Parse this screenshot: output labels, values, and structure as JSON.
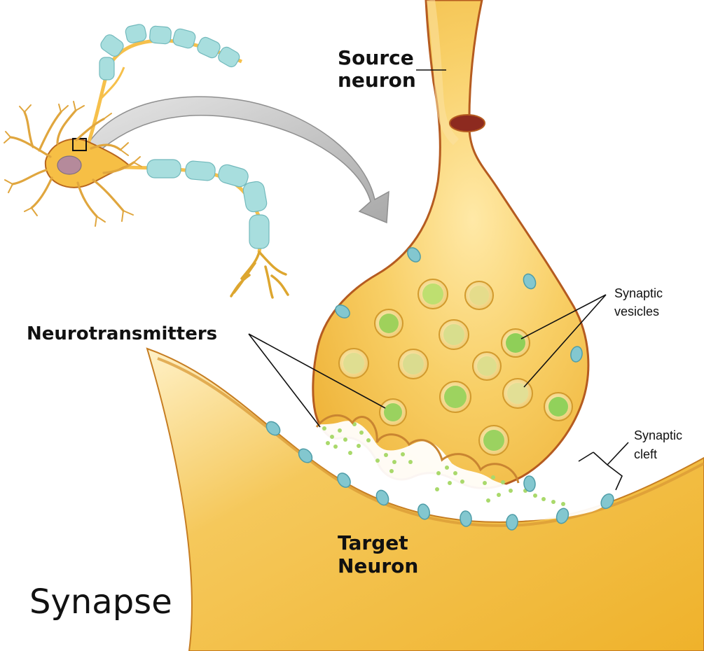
{
  "diagram": {
    "title": "Synapse",
    "labels": {
      "source_neuron": [
        "Source",
        "neuron"
      ],
      "target_neuron": [
        "Target",
        "Neuron"
      ],
      "neurotransmitters": "Neurotransmitters",
      "synaptic_vesicles": [
        "Synaptic",
        "vesicles"
      ],
      "synaptic_cleft": [
        "Synaptic",
        "cleft"
      ]
    },
    "colors": {
      "neuron_fill": "#f3b83a",
      "neuron_light": "#f9d987",
      "neuron_edge": "#b8651d",
      "myelin": "#a8dede",
      "vesicle": "#8bcf52",
      "receptor": "#83c7cf",
      "arrow": "#b9b9b9"
    },
    "icons": [
      "neuron-overview",
      "zoom-arrow",
      "synaptic-vesicle",
      "neurotransmitter-dot",
      "receptor-channel"
    ]
  }
}
